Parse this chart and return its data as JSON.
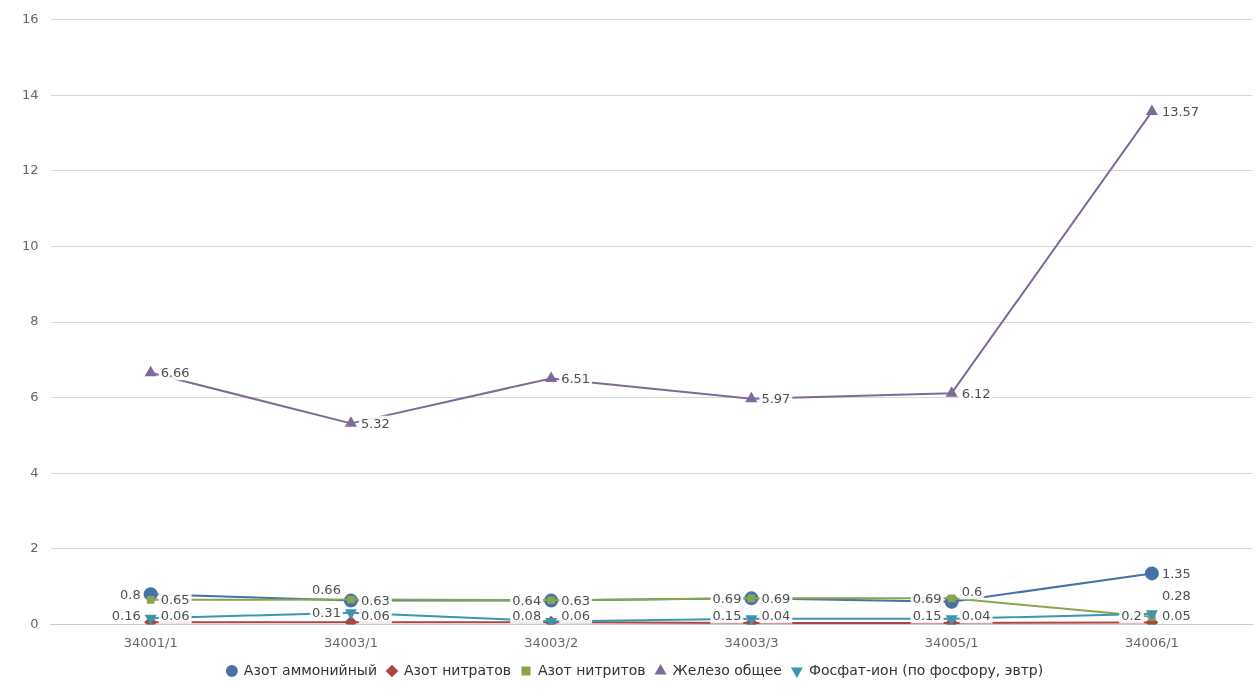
{
  "chart_data": {
    "type": "line",
    "categories": [
      "34001/1",
      "34003/1",
      "34003/2",
      "34003/3",
      "34005/1",
      "34006/1"
    ],
    "series": [
      {
        "name": "Азот аммонийный",
        "color": "#4572a7",
        "marker": "circle",
        "values": [
          0.8,
          0.63,
          0.63,
          0.69,
          0.6,
          1.35
        ]
      },
      {
        "name": "Азот нитратов",
        "color": "#aa4643",
        "marker": "diamond",
        "values": [
          0.06,
          0.06,
          0.06,
          0.04,
          0.04,
          0.05
        ]
      },
      {
        "name": "Азот нитритов",
        "color": "#89a54e",
        "marker": "square",
        "values": [
          0.65,
          0.66,
          0.64,
          0.69,
          0.69,
          0.2
        ]
      },
      {
        "name": "Железо общее",
        "color": "#80699b",
        "marker": "triangle",
        "values": [
          6.66,
          5.32,
          6.51,
          5.97,
          6.12,
          13.57
        ]
      },
      {
        "name": "Фосфат-ион (по фосфору, эвтр)",
        "color": "#3d96ae",
        "marker": "triangle_down",
        "values": [
          0.16,
          0.31,
          0.08,
          0.15,
          0.15,
          0.28
        ]
      }
    ],
    "ylim": [
      0,
      16
    ],
    "yticks": [
      0,
      2,
      4,
      6,
      8,
      10,
      12,
      14,
      16
    ],
    "grid": "y",
    "legend": "bottom",
    "data_labels": true,
    "line_style": "solid"
  }
}
